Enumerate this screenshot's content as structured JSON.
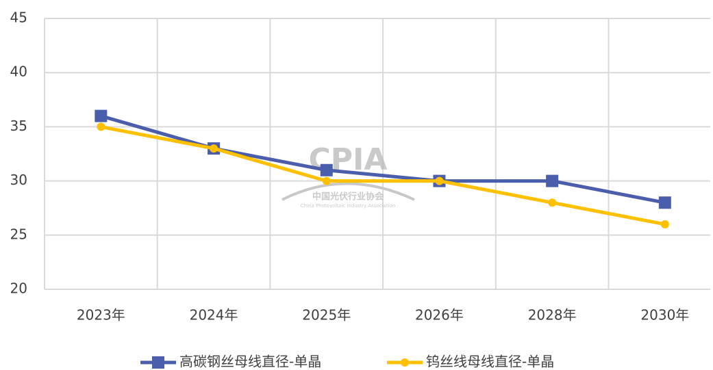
{
  "chart_data": {
    "type": "line",
    "categories": [
      "2023年",
      "2024年",
      "2025年",
      "2026年",
      "2028年",
      "2030年"
    ],
    "series": [
      {
        "name": "高碳钢丝母线直径-单晶",
        "color": "#4a5eab",
        "marker": "square",
        "values": [
          36,
          33,
          31,
          30,
          30,
          28
        ]
      },
      {
        "name": "钨丝线母线直径-单晶",
        "color": "#ffc000",
        "marker": "circle",
        "values": [
          35,
          33,
          30,
          30,
          28,
          26
        ]
      }
    ],
    "ylim": [
      20,
      45
    ],
    "yticks": [
      20,
      25,
      30,
      35,
      40,
      45
    ],
    "grid": true,
    "legend": "bottom",
    "watermark": {
      "logo": "CPIA",
      "name": "中国光伏行业协会",
      "english": "China Photovoltaic Industry Association"
    }
  }
}
